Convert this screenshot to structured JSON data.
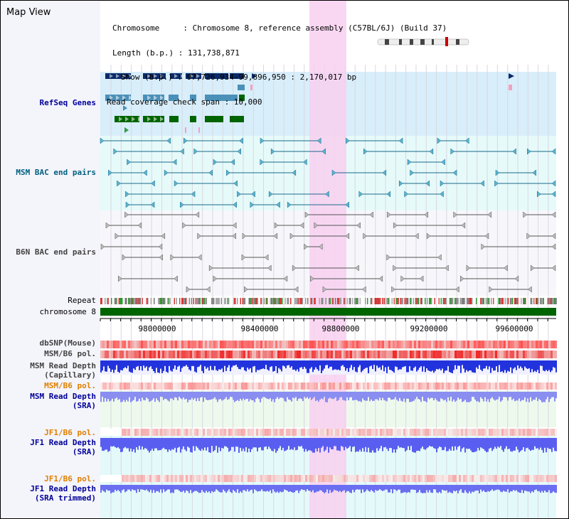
{
  "title": "Map View",
  "header": {
    "chromosome_key": "Chromosome",
    "chromosome_value": "Chromosome 8, reference assembly (C57BL/6J) (Build 37)",
    "length_key": "Length (b.p.)",
    "length_value": "131,738,871",
    "show_key": "Show (b.p.)",
    "show_value": "97,726,934-99,896,950 : 2,170,017 bp",
    "coverage_label": "Read coverage check span : 10,000"
  },
  "tracks": {
    "refseq": "RefSeq Genes",
    "msm_bac": "MSM BAC end pairs",
    "b6n_bac": "B6N BAC end pairs",
    "repeat": "Repeat",
    "chromosome": "chromosome 8",
    "dbsnp": "dbSNP(Mouse)",
    "msm_b6_pol": "MSM/B6 pol.",
    "msm_depth_cap_1": "MSM Read Depth",
    "msm_depth_cap_2": "(Capillary)",
    "msm_b6_pol2": "MSM/B6 pol.",
    "msm_depth_sra_1": "MSM Read Depth",
    "msm_depth_sra_2": "(SRA)",
    "jf1_pol_1": "JF1/B6 pol.",
    "jf1_depth_1": "JF1 Read Depth",
    "jf1_depth_1b": "(SRA)",
    "jf1_pol_2": "JF1/B6 pol.",
    "jf1_depth_2": "JF1 Read Depth",
    "jf1_depth_2b": "(SRA trimmed)"
  },
  "axis": {
    "ticks": [
      "98000000",
      "98400000",
      "98800000",
      "99200000",
      "99600000"
    ]
  },
  "colors": {
    "highlight": "#f8d0f0",
    "refseq_band": "#d8eefa",
    "gene_dark": "#0a2a6a",
    "gene_mid": "#4a90b8",
    "gene_green": "#006400",
    "msm_line": "#1a6a8a",
    "b6n_line": "#555555",
    "chrom_bar": "#006400",
    "label_blue": "#000099",
    "label_teal": "#006080",
    "label_orange": "#e08000",
    "label_gray": "#444444"
  }
}
